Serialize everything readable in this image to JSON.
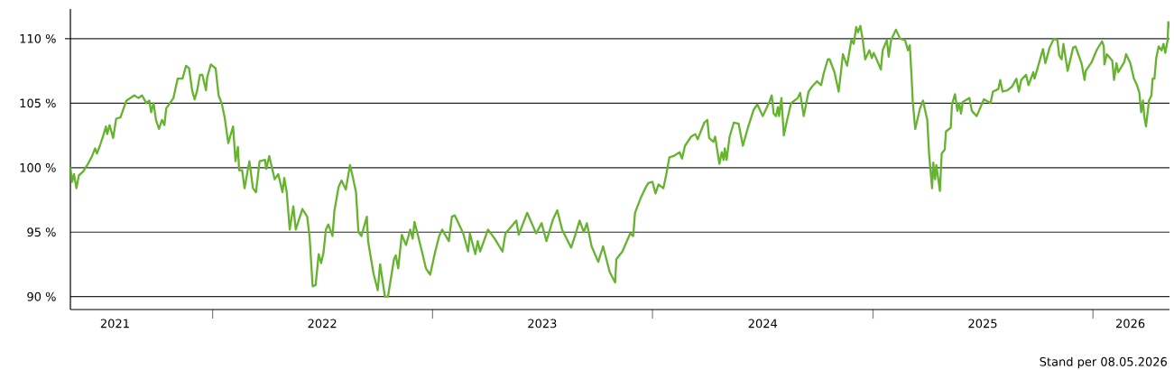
{
  "chart_data": {
    "type": "line",
    "color": "#65b32e",
    "line_style": "solid",
    "grid": "y",
    "xlim": [
      "2021-05-10",
      "2026-05-08"
    ],
    "ylim": [
      89.0,
      112.3
    ],
    "xticks": [
      {
        "value": "2021-07-23",
        "label": "2021"
      },
      {
        "value": "2022-01-01",
        "label": null
      },
      {
        "value": "2022-07-02",
        "label": "2022"
      },
      {
        "value": "2023-01-01",
        "label": null
      },
      {
        "value": "2023-07-02",
        "label": "2023"
      },
      {
        "value": "2024-01-01",
        "label": null
      },
      {
        "value": "2024-07-02",
        "label": "2024"
      },
      {
        "value": "2025-01-01",
        "label": null
      },
      {
        "value": "2025-07-02",
        "label": "2025"
      },
      {
        "value": "2026-01-01",
        "label": null
      },
      {
        "value": "2026-03-04",
        "label": "2026"
      }
    ],
    "yticks": [
      {
        "value": 90,
        "label": "90 %"
      },
      {
        "value": 95,
        "label": "95 %"
      },
      {
        "value": 100,
        "label": "100 %"
      },
      {
        "value": 105,
        "label": "105 %"
      },
      {
        "value": 110,
        "label": "110 %"
      }
    ],
    "annotations": [
      "Stand per 08.05.2026"
    ],
    "x": [
      "2021-05-10",
      "2021-05-13",
      "2021-05-16",
      "2021-05-20",
      "2021-05-24",
      "2021-05-31",
      "2021-06-07",
      "2021-06-15",
      "2021-06-20",
      "2021-06-23",
      "2021-06-28",
      "2021-07-03",
      "2021-07-08",
      "2021-07-10",
      "2021-07-14",
      "2021-07-20",
      "2021-07-25",
      "2021-08-01",
      "2021-08-11",
      "2021-08-24",
      "2021-08-31",
      "2021-09-06",
      "2021-09-13",
      "2021-09-18",
      "2021-09-21",
      "2021-09-25",
      "2021-09-29",
      "2021-10-04",
      "2021-10-09",
      "2021-10-13",
      "2021-10-16",
      "2021-10-28",
      "2021-11-04",
      "2021-11-12",
      "2021-11-18",
      "2021-11-23",
      "2021-11-28",
      "2021-12-02",
      "2021-12-06",
      "2021-12-11",
      "2021-12-15",
      "2021-12-21",
      "2021-12-23",
      "2021-12-29",
      "2022-01-06",
      "2022-01-11",
      "2022-01-16",
      "2022-01-21",
      "2022-01-27",
      "2022-02-04",
      "2022-02-08",
      "2022-02-12",
      "2022-02-14",
      "2022-02-19",
      "2022-02-23",
      "2022-03-03",
      "2022-03-09",
      "2022-03-14",
      "2022-03-20",
      "2022-03-29",
      "2022-03-31",
      "2022-04-05",
      "2022-04-14",
      "2022-04-20",
      "2022-04-27",
      "2022-04-30",
      "2022-05-04",
      "2022-05-09",
      "2022-05-15",
      "2022-05-19",
      "2022-05-30",
      "2022-06-07",
      "2022-06-11",
      "2022-06-16",
      "2022-06-21",
      "2022-06-26",
      "2022-06-30",
      "2022-07-04",
      "2022-07-08",
      "2022-07-12",
      "2022-07-19",
      "2022-07-22",
      "2022-07-29",
      "2022-08-03",
      "2022-08-10",
      "2022-08-17",
      "2022-08-21",
      "2022-08-27",
      "2022-08-31",
      "2022-09-05",
      "2022-09-14",
      "2022-09-16",
      "2022-09-25",
      "2022-10-02",
      "2022-10-06",
      "2022-10-14",
      "2022-10-19",
      "2022-10-29",
      "2022-11-01",
      "2022-11-05",
      "2022-11-11",
      "2022-11-18",
      "2022-11-25",
      "2022-11-29",
      "2022-12-02",
      "2022-12-08",
      "2022-12-16",
      "2022-12-21",
      "2022-12-28",
      "2023-01-05",
      "2023-01-12",
      "2023-01-17",
      "2023-01-28",
      "2023-02-02",
      "2023-02-07",
      "2023-02-21",
      "2023-03-01",
      "2023-03-04",
      "2023-03-13",
      "2023-03-17",
      "2023-03-21",
      "2023-04-03",
      "2023-04-14",
      "2023-04-27",
      "2023-05-02",
      "2023-05-20",
      "2023-05-24",
      "2023-06-07",
      "2023-06-22",
      "2023-07-01",
      "2023-07-09",
      "2023-07-20",
      "2023-07-27",
      "2023-08-04",
      "2023-08-19",
      "2023-08-26",
      "2023-09-02",
      "2023-09-09",
      "2023-09-14",
      "2023-09-22",
      "2023-10-03",
      "2023-10-11",
      "2023-10-22",
      "2023-10-31",
      "2023-11-02",
      "2023-11-12",
      "2023-11-25",
      "2023-11-30",
      "2023-12-03",
      "2023-12-12",
      "2023-12-20",
      "2023-12-25",
      "2024-01-01",
      "2024-01-06",
      "2024-01-11",
      "2024-01-19",
      "2024-01-24",
      "2024-01-29",
      "2024-02-05",
      "2024-02-15",
      "2024-02-19",
      "2024-02-24",
      "2024-03-05",
      "2024-03-12",
      "2024-03-16",
      "2024-03-27",
      "2024-04-01",
      "2024-04-04",
      "2024-04-11",
      "2024-04-14",
      "2024-04-21",
      "2024-04-25",
      "2024-04-28",
      "2024-04-30",
      "2024-05-03",
      "2024-05-08",
      "2024-05-15",
      "2024-05-23",
      "2024-05-30",
      "2024-06-08",
      "2024-06-17",
      "2024-06-23",
      "2024-07-02",
      "2024-07-13",
      "2024-07-17",
      "2024-07-20",
      "2024-07-24",
      "2024-07-27",
      "2024-07-29",
      "2024-08-02",
      "2024-08-06",
      "2024-08-11",
      "2024-08-18",
      "2024-08-29",
      "2024-09-02",
      "2024-09-08",
      "2024-09-16",
      "2024-09-22",
      "2024-09-30",
      "2024-10-07",
      "2024-10-11",
      "2024-10-18",
      "2024-10-21",
      "2024-10-29",
      "2024-11-05",
      "2024-11-09",
      "2024-11-12",
      "2024-11-19",
      "2024-11-26",
      "2024-11-30",
      "2024-12-04",
      "2024-12-07",
      "2024-12-11",
      "2024-12-15",
      "2024-12-19",
      "2024-12-26",
      "2024-12-30",
      "2025-01-02",
      "2025-01-06",
      "2025-01-14",
      "2025-01-17",
      "2025-01-24",
      "2025-01-27",
      "2025-01-31",
      "2025-02-08",
      "2025-02-15",
      "2025-02-23",
      "2025-02-28",
      "2025-03-03",
      "2025-03-06",
      "2025-03-08",
      "2025-03-12",
      "2025-03-20",
      "2025-03-25",
      "2025-04-01",
      "2025-04-04",
      "2025-04-09",
      "2025-04-11",
      "2025-04-14",
      "2025-04-16",
      "2025-04-22",
      "2025-04-25",
      "2025-04-30",
      "2025-05-02",
      "2025-05-10",
      "2025-05-12",
      "2025-05-17",
      "2025-05-21",
      "2025-05-24",
      "2025-05-27",
      "2025-05-30",
      "2025-06-10",
      "2025-06-14",
      "2025-06-22",
      "2025-07-04",
      "2025-07-15",
      "2025-07-19",
      "2025-07-28",
      "2025-07-31",
      "2025-08-04",
      "2025-08-12",
      "2025-08-20",
      "2025-08-27",
      "2025-08-31",
      "2025-09-04",
      "2025-09-12",
      "2025-09-16",
      "2025-09-24",
      "2025-09-26",
      "2025-10-04",
      "2025-10-10",
      "2025-10-14",
      "2025-10-21",
      "2025-10-28",
      "2025-11-03",
      "2025-11-06",
      "2025-11-10",
      "2025-11-13",
      "2025-11-20",
      "2025-11-29",
      "2025-12-03",
      "2025-12-13",
      "2025-12-18",
      "2025-12-20",
      "2025-12-30",
      "2026-01-07",
      "2026-01-16",
      "2026-01-19",
      "2026-01-20",
      "2026-01-24",
      "2026-02-02",
      "2026-02-05",
      "2026-02-09",
      "2026-02-12",
      "2026-02-22",
      "2026-02-25",
      "2026-03-04",
      "2026-03-10",
      "2026-03-15",
      "2026-03-19",
      "2026-03-22",
      "2026-03-25",
      "2026-03-27",
      "2026-03-30",
      "2026-04-04",
      "2026-04-08",
      "2026-04-10",
      "2026-04-13",
      "2026-04-16",
      "2026-04-20",
      "2026-04-25",
      "2026-04-28",
      "2026-05-01",
      "2026-05-05",
      "2026-05-06",
      "2026-05-08"
    ],
    "values": [
      100.0,
      98.9,
      99.5,
      98.4,
      99.4,
      99.7,
      100.2,
      100.9,
      101.5,
      101.1,
      101.7,
      102.4,
      103.2,
      102.6,
      103.3,
      102.3,
      103.8,
      103.9,
      105.2,
      105.6,
      105.4,
      105.6,
      105.0,
      105.2,
      104.3,
      105.0,
      103.7,
      103.0,
      103.7,
      103.3,
      104.6,
      105.4,
      106.9,
      106.9,
      107.9,
      107.7,
      106.0,
      105.3,
      105.9,
      107.2,
      107.2,
      106.0,
      107.0,
      108.0,
      107.7,
      105.6,
      105.0,
      103.9,
      101.9,
      103.2,
      100.5,
      101.6,
      99.8,
      99.8,
      98.4,
      100.5,
      98.4,
      98.1,
      100.5,
      100.6,
      99.9,
      100.9,
      99.1,
      99.5,
      98.1,
      99.2,
      98.1,
      95.2,
      97.0,
      95.2,
      96.8,
      96.2,
      94.6,
      90.8,
      90.9,
      93.3,
      92.6,
      93.4,
      95.2,
      95.6,
      94.7,
      96.6,
      98.5,
      99.0,
      98.3,
      100.2,
      99.4,
      98.1,
      95.0,
      94.7,
      96.2,
      94.3,
      91.8,
      90.5,
      92.5,
      90.0,
      90.0,
      92.9,
      93.2,
      92.2,
      94.8,
      94.0,
      95.2,
      94.5,
      95.8,
      94.7,
      93.2,
      92.2,
      91.7,
      93.4,
      94.7,
      95.2,
      94.3,
      96.2,
      96.3,
      94.9,
      93.5,
      94.9,
      93.3,
      94.3,
      93.5,
      95.2,
      94.5,
      93.5,
      94.9,
      95.9,
      94.8,
      96.5,
      94.9,
      95.7,
      94.3,
      96.0,
      96.7,
      95.2,
      93.8,
      94.8,
      95.9,
      95.0,
      95.7,
      93.9,
      92.7,
      93.9,
      91.9,
      91.1,
      92.9,
      93.5,
      94.9,
      94.7,
      96.5,
      97.6,
      98.4,
      98.8,
      98.9,
      98.0,
      98.7,
      98.4,
      99.5,
      100.8,
      100.9,
      101.2,
      100.7,
      101.7,
      102.4,
      102.6,
      102.2,
      103.5,
      103.7,
      102.3,
      102.0,
      102.4,
      100.3,
      101.2,
      100.6,
      101.5,
      100.6,
      102.4,
      103.5,
      103.4,
      101.7,
      103.2,
      104.5,
      104.9,
      104.0,
      105.1,
      105.6,
      104.2,
      104.0,
      104.7,
      104.0,
      105.4,
      102.5,
      103.6,
      105.0,
      105.4,
      105.8,
      104.0,
      105.9,
      106.3,
      106.7,
      106.4,
      107.3,
      108.4,
      108.4,
      107.4,
      105.9,
      107.5,
      108.8,
      107.9,
      109.9,
      109.6,
      110.9,
      110.5,
      111.0,
      109.9,
      108.4,
      109.1,
      108.5,
      108.9,
      108.5,
      107.6,
      109.1,
      109.9,
      108.6,
      109.9,
      110.7,
      110.0,
      109.9,
      109.1,
      109.5,
      107.0,
      105.1,
      103.0,
      104.6,
      105.2,
      103.7,
      101.1,
      98.4,
      100.4,
      99.1,
      100.2,
      98.2,
      101.1,
      101.4,
      102.8,
      103.1,
      104.9,
      105.7,
      104.4,
      105.0,
      104.2,
      105.1,
      105.4,
      104.4,
      104.0,
      105.3,
      105.0,
      105.9,
      106.1,
      106.8,
      105.9,
      106.0,
      106.3,
      106.9,
      105.9,
      106.8,
      107.2,
      106.4,
      107.4,
      106.9,
      108.2,
      109.2,
      108.1,
      109.3,
      110.0,
      109.9,
      108.7,
      108.4,
      109.6,
      107.5,
      109.3,
      109.4,
      108.1,
      106.8,
      107.5,
      108.2,
      109.1,
      109.8,
      109.4,
      108.0,
      108.8,
      108.3,
      106.8,
      108.1,
      107.4,
      108.2,
      108.8,
      108.1,
      106.9,
      106.4,
      105.8,
      104.3,
      105.2,
      104.0,
      103.2,
      105.2,
      105.6,
      106.9,
      106.9,
      108.5,
      109.4,
      109.1,
      109.6,
      108.9,
      109.9,
      111.3,
      110.9
    ]
  }
}
